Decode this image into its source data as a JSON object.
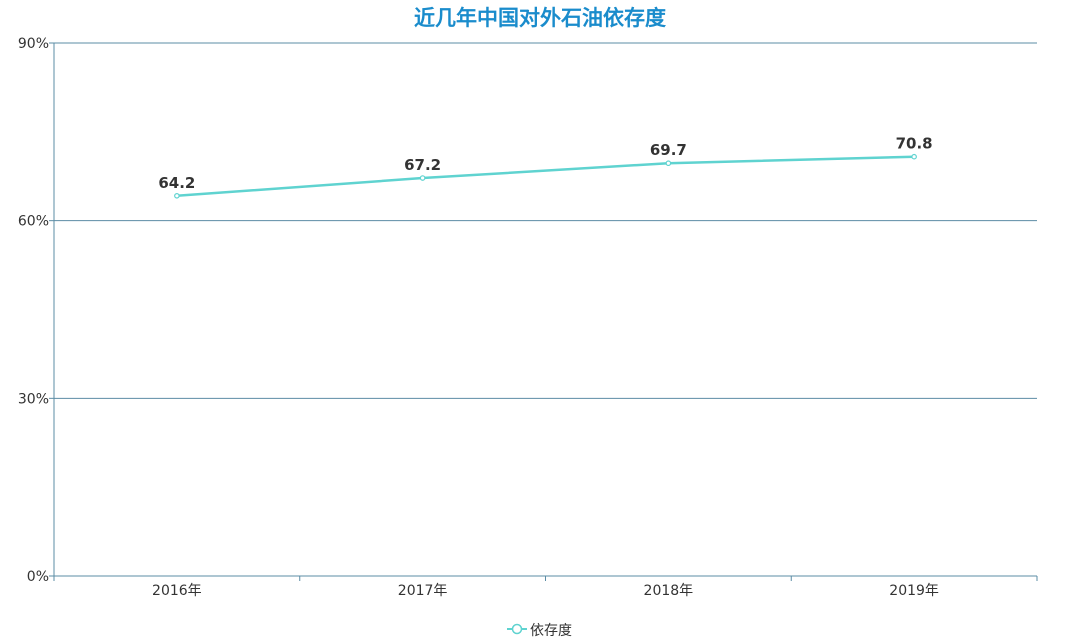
{
  "chart_data": {
    "type": "line",
    "title": "近几年中国对外石油依存度",
    "categories": [
      "2016年",
      "2017年",
      "2018年",
      "2019年"
    ],
    "series": [
      {
        "name": "依存度",
        "values": [
          64.2,
          67.2,
          69.7,
          70.8
        ]
      }
    ],
    "data_labels": [
      "64.2",
      "67.2",
      "69.7",
      "70.8"
    ],
    "ylim": [
      0,
      90
    ],
    "y_ticks": [
      0,
      30,
      60,
      90
    ],
    "y_tick_labels": [
      "0%",
      "30%",
      "60%",
      "90%"
    ],
    "grid": true,
    "legend_position": "bottom-center"
  },
  "colors": {
    "title": "#1a8ccc",
    "line": "#5fd3d0",
    "axis": "#5b8ca5",
    "grid": "#5b8ca5",
    "text": "#333333"
  }
}
